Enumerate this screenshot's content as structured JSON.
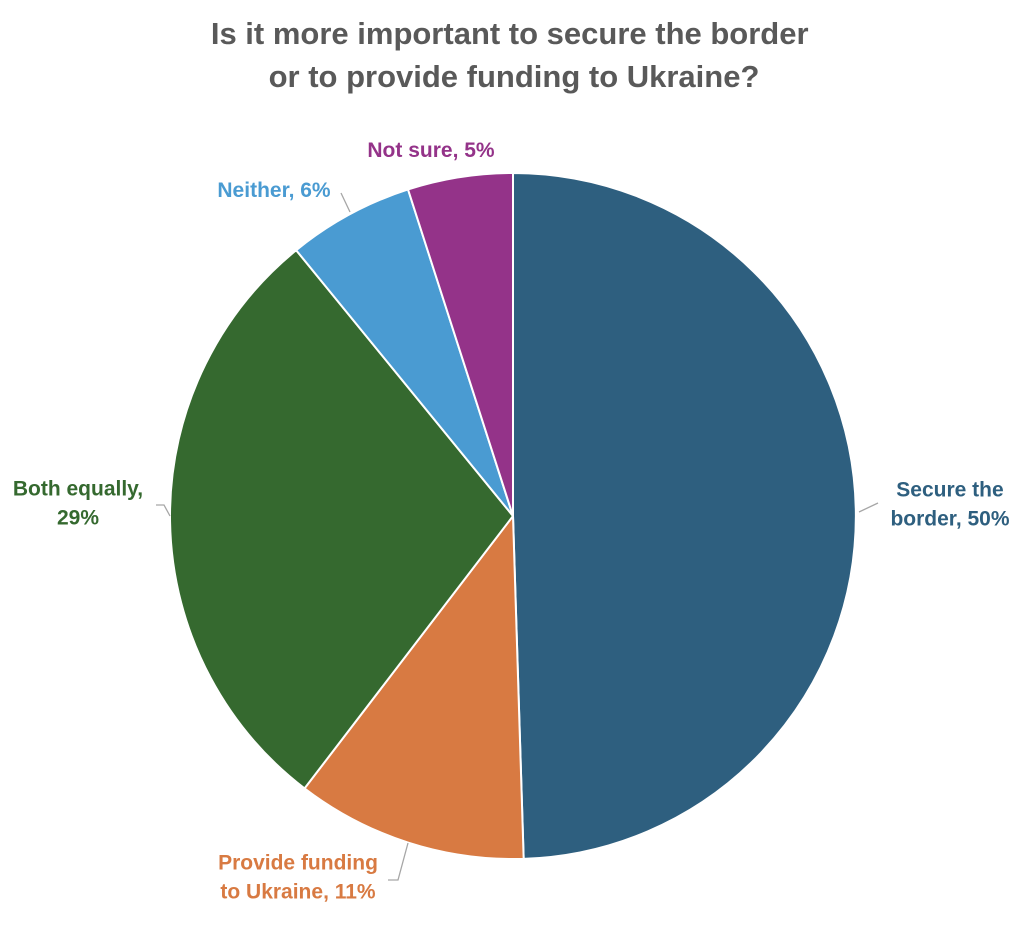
{
  "chart_data": {
    "type": "pie",
    "title_lines": [
      "Is it more important to secure the border",
      "or to provide funding to Ukraine?"
    ],
    "slices": [
      {
        "key": "secure",
        "label_lines": [
          "Secure the",
          "border, 50%"
        ],
        "value": 50,
        "color": "#2e5f7f"
      },
      {
        "key": "provide",
        "label_lines": [
          "Provide funding",
          "to Ukraine, 11%"
        ],
        "value": 11,
        "color": "#d87a42"
      },
      {
        "key": "both",
        "label_lines": [
          "Both equally,",
          "29%"
        ],
        "value": 29,
        "color": "#35692f"
      },
      {
        "key": "neither",
        "label_lines": [
          "Neither, 6%"
        ],
        "value": 6,
        "color": "#4a9bd2"
      },
      {
        "key": "notsure",
        "label_lines": [
          "Not sure, 5%"
        ],
        "value": 5,
        "color": "#943389"
      }
    ],
    "start_angle": "12 o'clock",
    "direction": "clockwise",
    "legend": "none (data labels next to slices)"
  }
}
